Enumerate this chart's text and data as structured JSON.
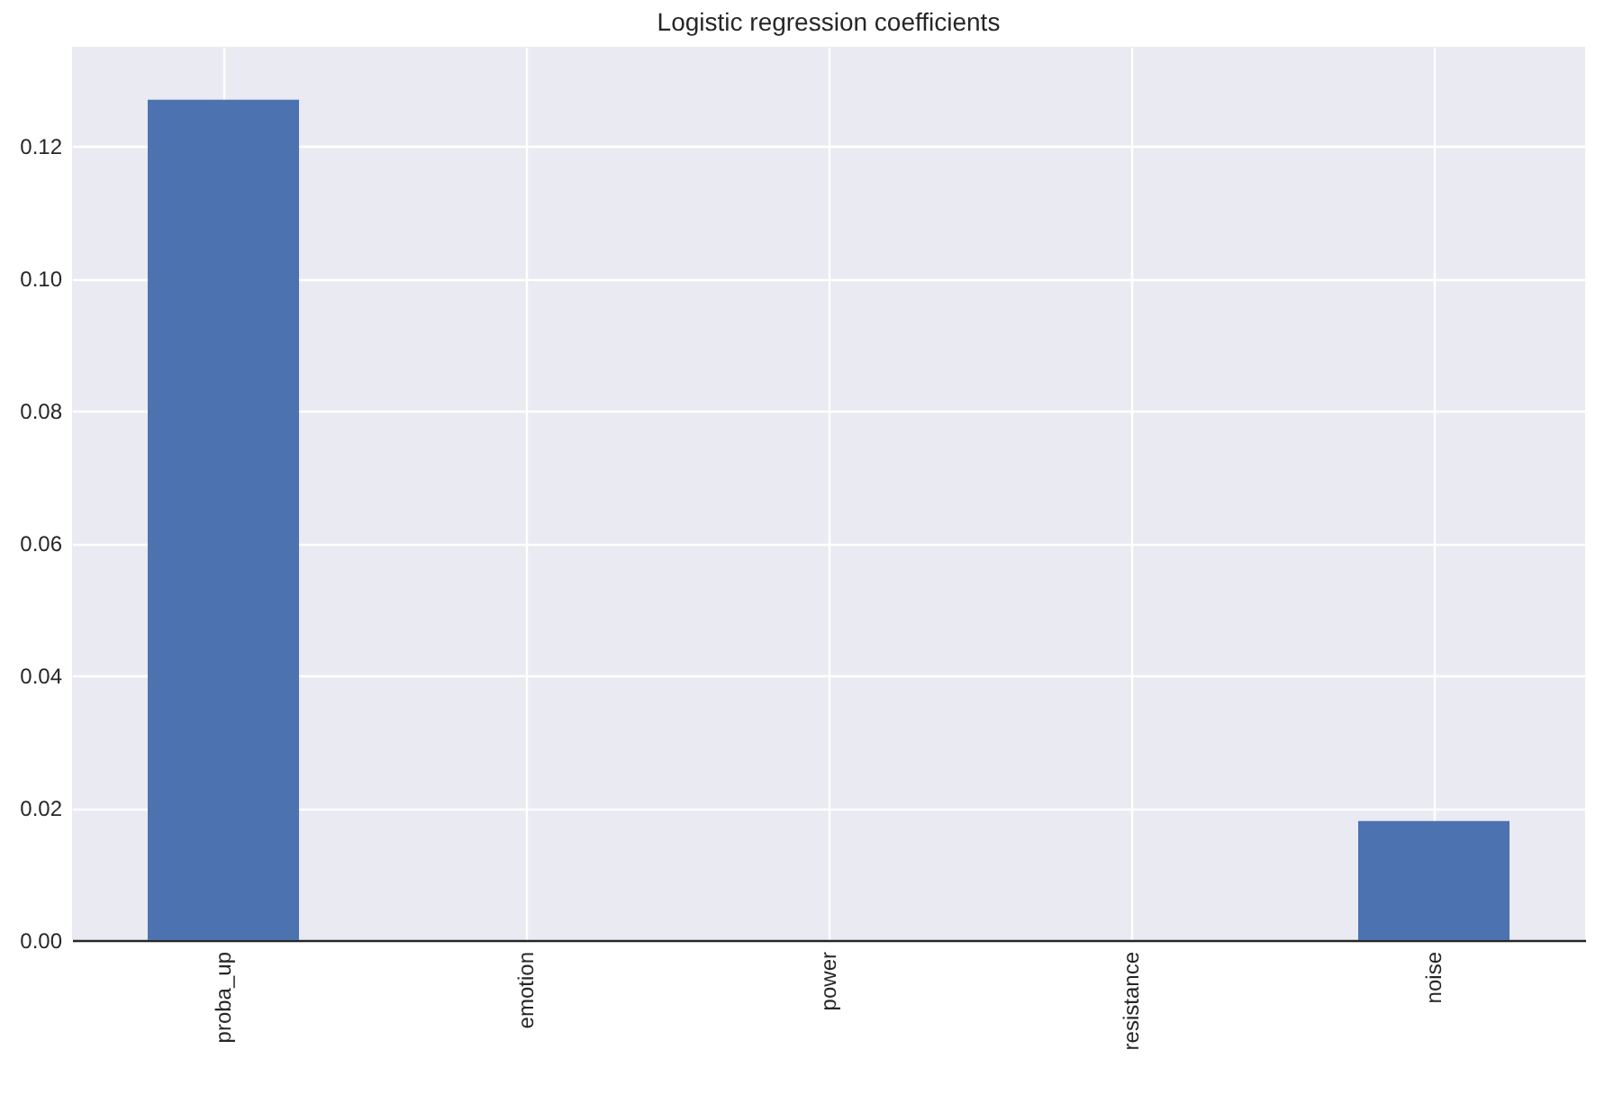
{
  "chart_data": {
    "type": "bar",
    "title": "Logistic regression coefficients",
    "categories": [
      "proba_up",
      "emotion",
      "power",
      "resistance",
      "noise"
    ],
    "values": [
      0.127,
      0,
      0,
      0,
      0.018
    ],
    "color": "#4c72b0",
    "ylim": [
      0,
      0.135
    ],
    "yticks": [
      {
        "value": 0,
        "label": "0.00"
      },
      {
        "value": 0.02,
        "label": "0.02"
      },
      {
        "value": 0.04,
        "label": "0.04"
      },
      {
        "value": 0.06,
        "label": "0.06"
      },
      {
        "value": 0.08,
        "label": "0.08"
      },
      {
        "value": 0.1,
        "label": "0.10"
      },
      {
        "value": 0.12,
        "label": "0.12"
      }
    ],
    "grid": true
  }
}
